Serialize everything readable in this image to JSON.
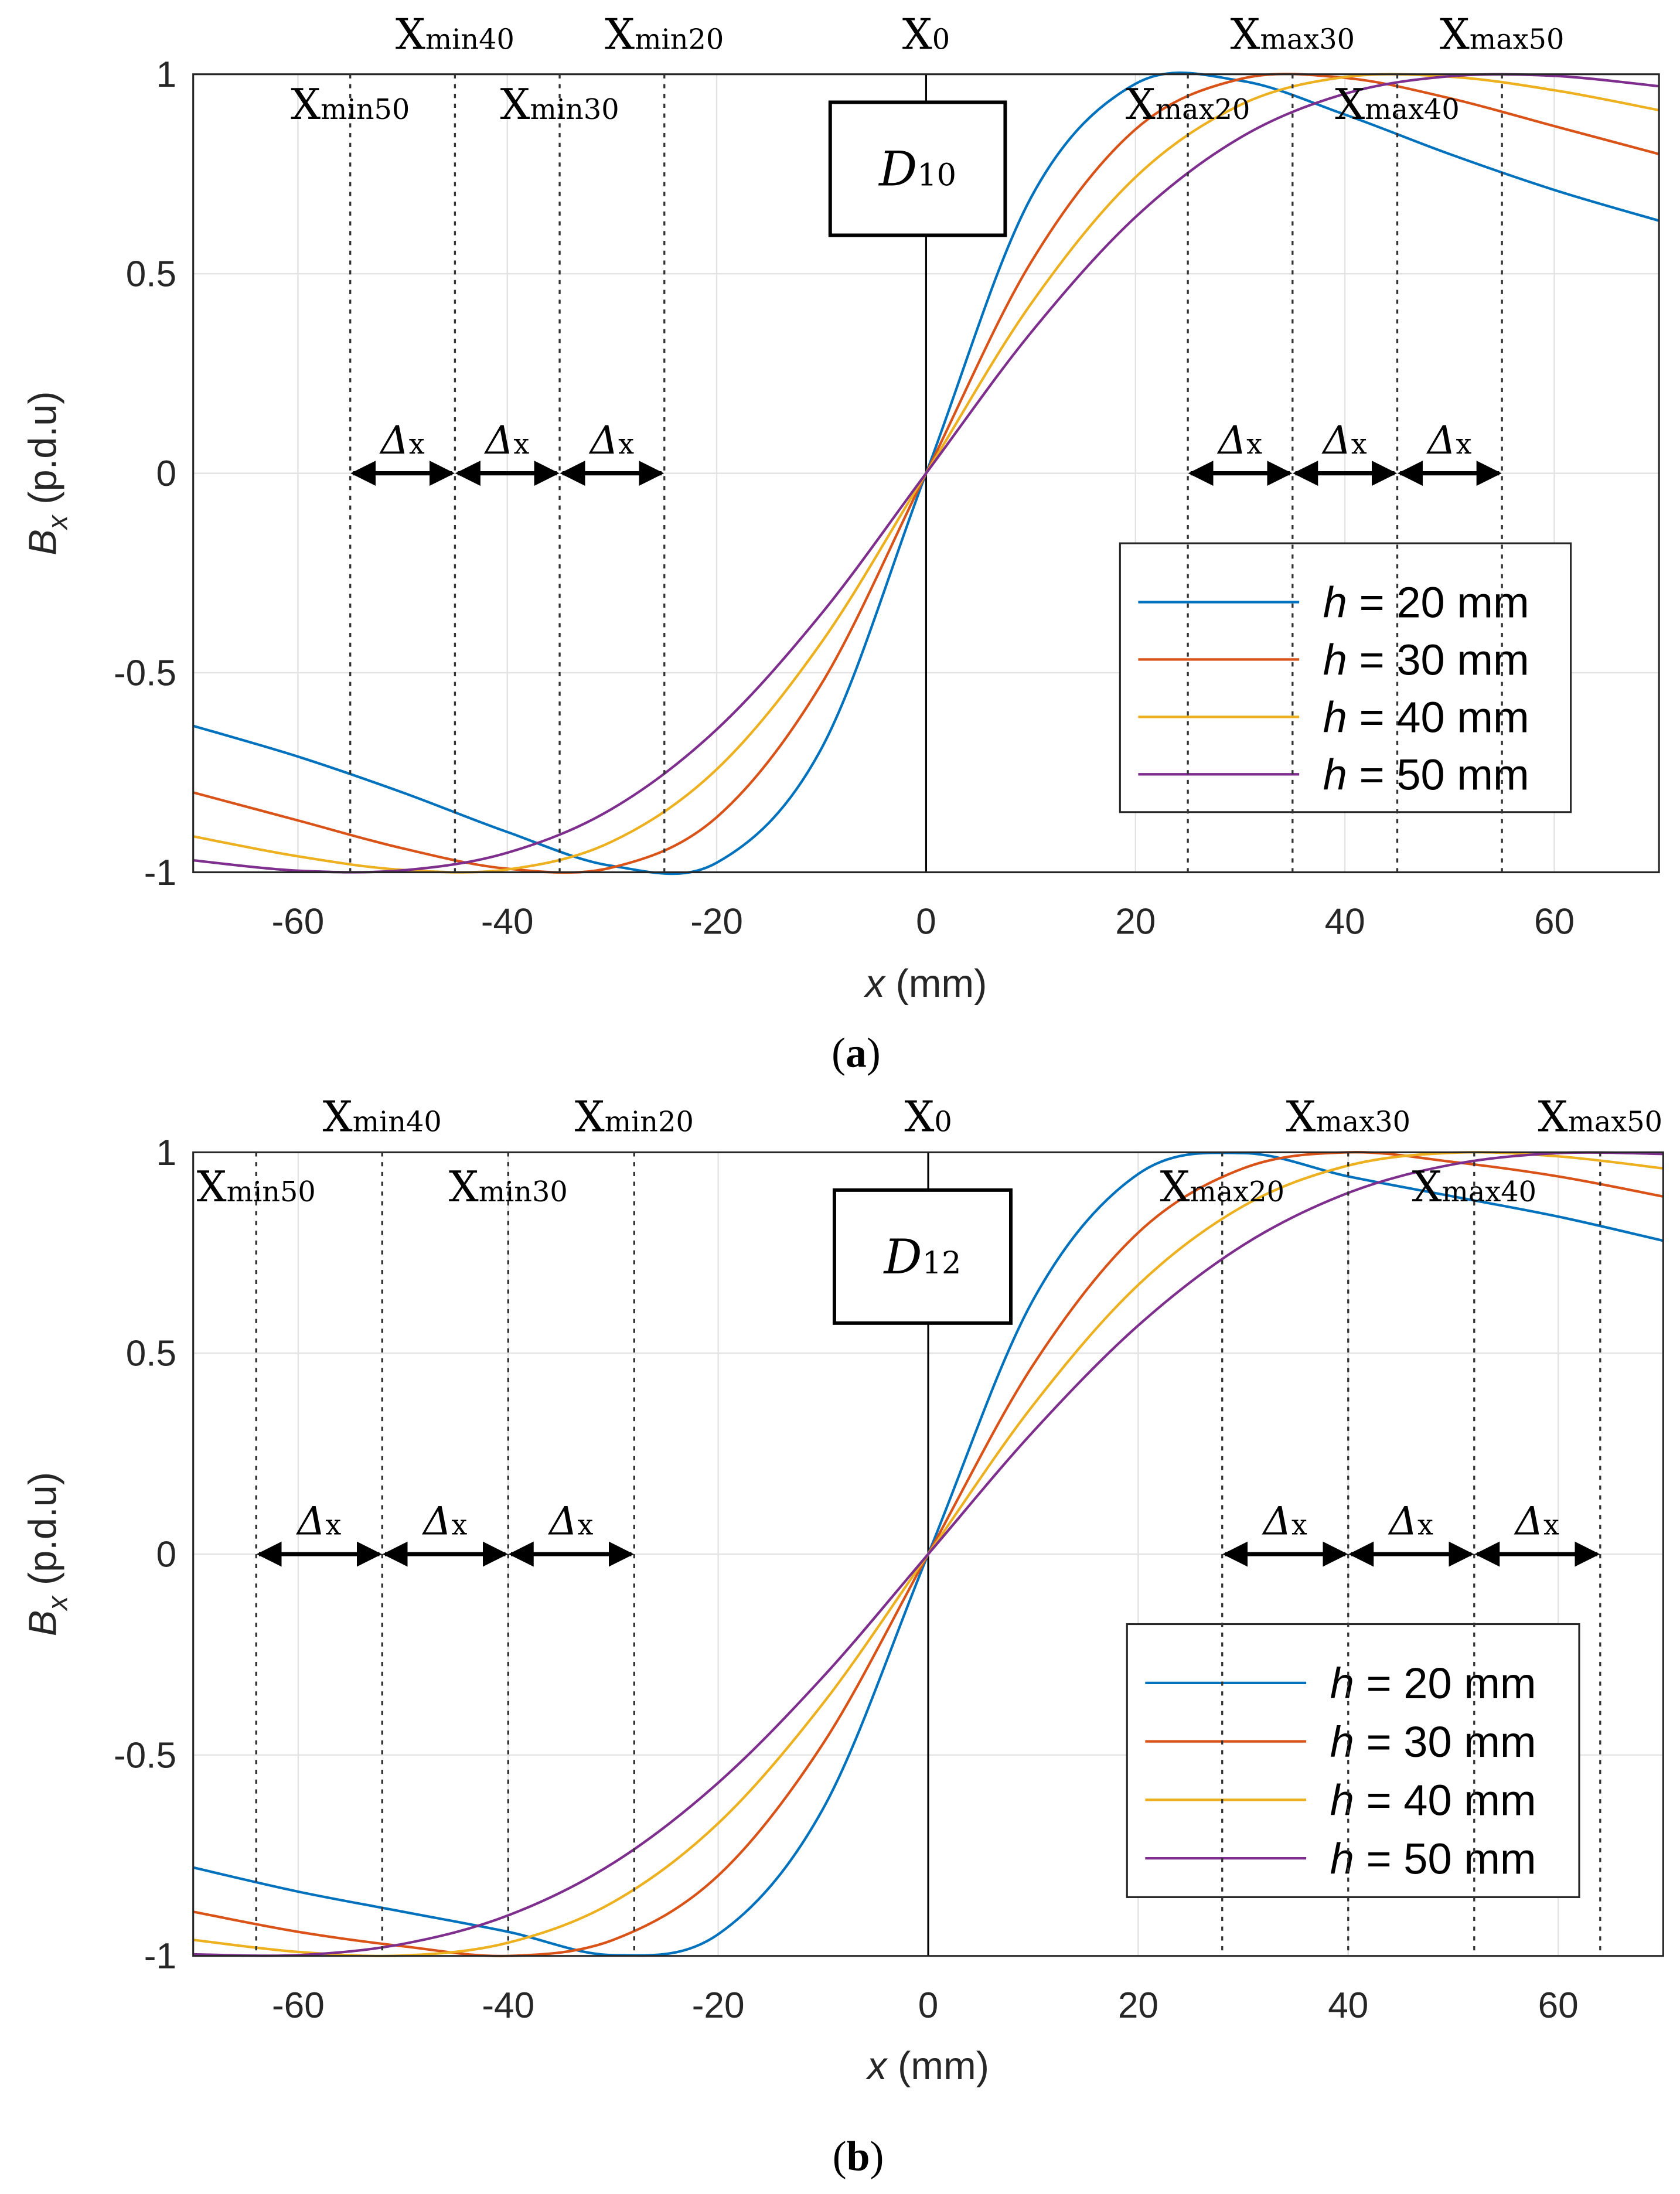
{
  "chart_data": [
    {
      "type": "line",
      "caption": "a",
      "box_label": {
        "main": "D",
        "sub": "10"
      },
      "xlabel_var": "x",
      "xlabel_unit": " (mm)",
      "ylabel_var": "B",
      "ylabel_sub": "x",
      "ylabel_unit": " (p.d.u)",
      "xlim": [
        -70,
        70
      ],
      "ylim": [
        -1,
        1
      ],
      "xticks": [
        -60,
        -40,
        -20,
        0,
        20,
        40,
        60
      ],
      "yticks": [
        1,
        0.5,
        0,
        -0.5,
        -1
      ],
      "ytick_labels": [
        "1",
        "0.5",
        "0",
        "-0.5",
        "-1"
      ],
      "grid": true,
      "legend_placement": "lower-right",
      "x": [
        -70,
        -60,
        -50,
        -40,
        -30,
        -20,
        -10,
        0,
        10,
        20,
        30,
        40,
        50,
        60,
        70
      ],
      "series": [
        {
          "name": "h = 20 mm",
          "h": "20",
          "color": "#0072BD",
          "values": [
            -0.633,
            -0.71,
            -0.8,
            -0.899,
            -0.984,
            -0.976,
            -0.69,
            0,
            0.69,
            0.976,
            0.984,
            0.899,
            0.8,
            0.71,
            0.633
          ]
        },
        {
          "name": "h = 30 mm",
          "h": "30",
          "color": "#D95319",
          "values": [
            -0.8,
            -0.87,
            -0.94,
            -0.991,
            -0.988,
            -0.862,
            -0.528,
            0,
            0.528,
            0.862,
            0.988,
            0.991,
            0.94,
            0.87,
            0.8
          ]
        },
        {
          "name": "h = 40 mm",
          "h": "40",
          "color": "#EDB120",
          "values": [
            -0.91,
            -0.96,
            -0.994,
            -0.993,
            -0.923,
            -0.742,
            -0.424,
            0,
            0.424,
            0.742,
            0.923,
            0.993,
            0.994,
            0.96,
            0.91
          ]
        },
        {
          "name": "h = 50 mm",
          "h": "50",
          "color": "#7E2F8E",
          "values": [
            -0.97,
            -0.996,
            -0.995,
            -0.951,
            -0.841,
            -0.642,
            -0.352,
            0,
            0.352,
            0.642,
            0.841,
            0.951,
            0.995,
            0.996,
            0.97
          ]
        }
      ],
      "markers": [
        {
          "label": "X",
          "sub": "min50",
          "x": -55,
          "row": "inner"
        },
        {
          "label": "X",
          "sub": "min40",
          "x": -45,
          "row": "top"
        },
        {
          "label": "X",
          "sub": "min30",
          "x": -35,
          "row": "inner"
        },
        {
          "label": "X",
          "sub": "min20",
          "x": -25,
          "row": "top"
        },
        {
          "label": "X",
          "sub": "0",
          "x": 0,
          "row": "top"
        },
        {
          "label": "X",
          "sub": "max20",
          "x": 25,
          "row": "inner"
        },
        {
          "label": "X",
          "sub": "max30",
          "x": 35,
          "row": "top"
        },
        {
          "label": "X",
          "sub": "max40",
          "x": 45,
          "row": "inner"
        },
        {
          "label": "X",
          "sub": "max50",
          "x": 55,
          "row": "top"
        }
      ],
      "delta_label": {
        "main": "Δ",
        "sub": "x"
      },
      "delta_intervals": [
        [
          -55,
          -45
        ],
        [
          -45,
          -35
        ],
        [
          -35,
          -25
        ],
        [
          25,
          35
        ],
        [
          35,
          45
        ],
        [
          45,
          55
        ]
      ]
    },
    {
      "type": "line",
      "caption": "b",
      "box_label": {
        "main": "D",
        "sub": "12"
      },
      "xlabel_var": "x",
      "xlabel_unit": " (mm)",
      "ylabel_var": "B",
      "ylabel_sub": "x",
      "ylabel_unit": " (p.d.u)",
      "xlim": [
        -70,
        70
      ],
      "ylim": [
        -1,
        1
      ],
      "xticks": [
        -60,
        -40,
        -20,
        0,
        20,
        40,
        60
      ],
      "yticks": [
        1,
        0.5,
        0,
        -0.5,
        -1
      ],
      "ytick_labels": [
        "1",
        "0.5",
        "0",
        "-0.5",
        "-1"
      ],
      "grid": true,
      "legend_placement": "lower-right",
      "x": [
        -70,
        -60,
        -50,
        -40,
        -30,
        -20,
        -10,
        0,
        10,
        20,
        30,
        40,
        50,
        60,
        70
      ],
      "series": [
        {
          "name": "h = 20 mm",
          "h": "20",
          "color": "#0072BD",
          "values": [
            -0.78,
            -0.84,
            -0.89,
            -0.94,
            -0.998,
            -0.946,
            -0.633,
            0,
            0.633,
            0.946,
            0.998,
            0.94,
            0.89,
            0.84,
            0.78
          ]
        },
        {
          "name": "h = 30 mm",
          "h": "30",
          "color": "#D95319",
          "values": [
            -0.89,
            -0.94,
            -0.976,
            -1.0,
            -0.96,
            -0.8,
            -0.471,
            0,
            0.471,
            0.8,
            0.96,
            1.0,
            0.976,
            0.94,
            0.89
          ]
        },
        {
          "name": "h = 40 mm",
          "h": "40",
          "color": "#EDB120",
          "values": [
            -0.96,
            -0.99,
            -0.999,
            -0.967,
            -0.866,
            -0.67,
            -0.371,
            0,
            0.371,
            0.67,
            0.866,
            0.967,
            0.999,
            0.99,
            0.96
          ]
        },
        {
          "name": "h = 50 mm",
          "h": "50",
          "color": "#7E2F8E",
          "values": [
            -0.996,
            -0.998,
            -0.97,
            -0.899,
            -0.769,
            -0.569,
            -0.305,
            0,
            0.305,
            0.569,
            0.769,
            0.899,
            0.97,
            0.998,
            0.996
          ]
        }
      ],
      "markers": [
        {
          "label": "X",
          "sub": "min50",
          "x": -64,
          "row": "inner"
        },
        {
          "label": "X",
          "sub": "min40",
          "x": -52,
          "row": "top"
        },
        {
          "label": "X",
          "sub": "min30",
          "x": -40,
          "row": "inner"
        },
        {
          "label": "X",
          "sub": "min20",
          "x": -28,
          "row": "top"
        },
        {
          "label": "X",
          "sub": "0",
          "x": 0,
          "row": "top"
        },
        {
          "label": "X",
          "sub": "max20",
          "x": 28,
          "row": "inner"
        },
        {
          "label": "X",
          "sub": "max30",
          "x": 40,
          "row": "top"
        },
        {
          "label": "X",
          "sub": "max40",
          "x": 52,
          "row": "inner"
        },
        {
          "label": "X",
          "sub": "max50",
          "x": 64,
          "row": "top"
        }
      ],
      "delta_label": {
        "main": "Δ",
        "sub": "x"
      },
      "delta_intervals": [
        [
          -64,
          -52
        ],
        [
          -52,
          -40
        ],
        [
          -40,
          -28
        ],
        [
          28,
          40
        ],
        [
          40,
          52
        ],
        [
          52,
          64
        ]
      ]
    }
  ]
}
